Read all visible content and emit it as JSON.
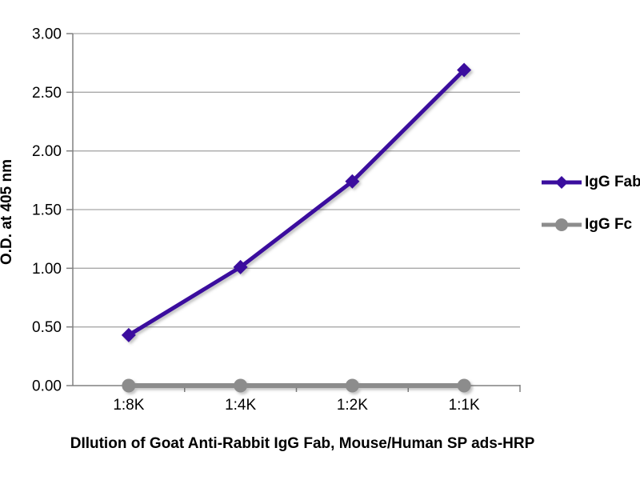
{
  "chart_data": {
    "type": "line",
    "title": "",
    "xlabel": "DIlution of Goat Anti-Rabbit IgG Fab, Mouse/Human SP ads-HRP",
    "ylabel": "O.D. at 405 nm",
    "categories": [
      "1:8K",
      "1:4K",
      "1:2K",
      "1:1K"
    ],
    "series": [
      {
        "name": "IgG Fab",
        "values": [
          0.43,
          1.01,
          1.74,
          2.69
        ],
        "color": "#3A0D9E",
        "marker": "diamond"
      },
      {
        "name": "IgG Fc",
        "values": [
          0.0,
          0.0,
          0.0,
          0.0
        ],
        "color": "#8C8C8C",
        "marker": "circle"
      }
    ],
    "ylim": [
      0,
      3
    ],
    "ytick_step": 0.5,
    "ytick_format": "0.00",
    "grid": "horizontal",
    "legend_position": "right",
    "colors": {
      "axis": "#808080",
      "gridline": "#A8A8A8",
      "labels": "#000000",
      "background": "#FFFFFF"
    }
  }
}
